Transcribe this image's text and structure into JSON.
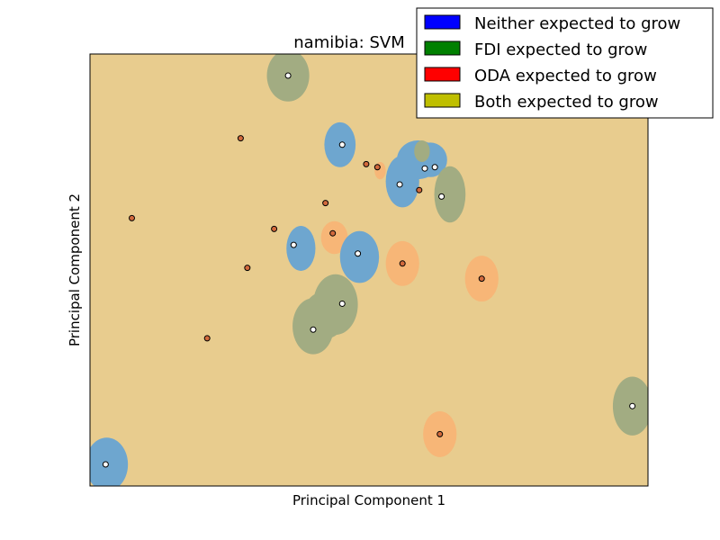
{
  "chart_data": {
    "type": "scatter",
    "title": "namibia: SVM",
    "xlabel": "Principal Component 1",
    "ylabel": "Principal Component 2",
    "xlim": [
      0,
      100
    ],
    "ylim": [
      0,
      100
    ],
    "ticks_shown": false,
    "legend": {
      "placement": "top-right",
      "entries": [
        {
          "label": "Neither expected to grow",
          "color": "#0000ff"
        },
        {
          "label": "FDI expected to grow",
          "color": "#008000"
        },
        {
          "label": "ODA expected to grow",
          "color": "#ff0000"
        },
        {
          "label": "Both expected to grow",
          "color": "#bfbf00"
        }
      ]
    },
    "region_colors": {
      "background": "#e8cc8e",
      "neither": "#6ea6cf",
      "fdi": "#a2ac82",
      "oda": "#f7b677"
    },
    "regions": [
      {
        "class": "fdi",
        "x": 35.5,
        "y": 95.0,
        "rx": 3.8,
        "ry": 6.0
      },
      {
        "class": "neither",
        "x": 44.8,
        "y": 79.0,
        "rx": 2.8,
        "ry": 5.2
      },
      {
        "class": "neither",
        "x": 56.0,
        "y": 70.5,
        "rx": 3.0,
        "ry": 6.0
      },
      {
        "class": "neither",
        "x": 58.8,
        "y": 75.5,
        "rx": 3.8,
        "ry": 4.5
      },
      {
        "class": "neither",
        "x": 61.0,
        "y": 75.5,
        "rx": 3.0,
        "ry": 4.0
      },
      {
        "class": "fdi",
        "x": 59.5,
        "y": 77.5,
        "rx": 1.4,
        "ry": 2.5
      },
      {
        "class": "fdi",
        "x": 64.5,
        "y": 67.5,
        "rx": 2.8,
        "ry": 6.5
      },
      {
        "class": "oda",
        "x": 52.0,
        "y": 73.0,
        "rx": 1.0,
        "ry": 2.0
      },
      {
        "class": "oda",
        "x": 43.8,
        "y": 57.5,
        "rx": 2.4,
        "ry": 3.8
      },
      {
        "class": "neither",
        "x": 37.8,
        "y": 55.0,
        "rx": 2.6,
        "ry": 5.2
      },
      {
        "class": "neither",
        "x": 48.3,
        "y": 53.0,
        "rx": 3.5,
        "ry": 6.0
      },
      {
        "class": "oda",
        "x": 56.0,
        "y": 51.5,
        "rx": 3.0,
        "ry": 5.2
      },
      {
        "class": "oda",
        "x": 70.2,
        "y": 48.0,
        "rx": 3.0,
        "ry": 5.3
      },
      {
        "class": "fdi",
        "x": 40.0,
        "y": 37.0,
        "rx": 3.7,
        "ry": 6.5
      },
      {
        "class": "fdi",
        "x": 44.0,
        "y": 42.0,
        "rx": 4.0,
        "ry": 7.0
      },
      {
        "class": "fdi",
        "x": 42.0,
        "y": 39.5,
        "rx": 3.8,
        "ry": 5.5
      },
      {
        "class": "fdi",
        "x": 97.2,
        "y": 18.5,
        "rx": 3.5,
        "ry": 6.8
      },
      {
        "class": "oda",
        "x": 62.7,
        "y": 12.0,
        "rx": 3.0,
        "ry": 5.3
      },
      {
        "class": "neither",
        "x": 3.0,
        "y": 5.0,
        "rx": 3.8,
        "ry": 6.2
      }
    ],
    "points": [
      {
        "x": 35.5,
        "y": 95.0,
        "color": "#ffffff"
      },
      {
        "x": 45.2,
        "y": 79.0,
        "color": "#ffffff"
      },
      {
        "x": 60.0,
        "y": 73.5,
        "color": "#ffffff"
      },
      {
        "x": 61.8,
        "y": 73.8,
        "color": "#ffffff"
      },
      {
        "x": 55.5,
        "y": 69.8,
        "color": "#ffffff"
      },
      {
        "x": 63.0,
        "y": 67.0,
        "color": "#ffffff"
      },
      {
        "x": 36.5,
        "y": 55.8,
        "color": "#ffffff"
      },
      {
        "x": 48.0,
        "y": 53.8,
        "color": "#ffffff"
      },
      {
        "x": 45.2,
        "y": 42.2,
        "color": "#ffffff"
      },
      {
        "x": 40.0,
        "y": 36.2,
        "color": "#ffffff"
      },
      {
        "x": 97.2,
        "y": 18.5,
        "color": "#ffffff"
      },
      {
        "x": 2.8,
        "y": 5.0,
        "color": "#ffffff"
      },
      {
        "x": 27.0,
        "y": 80.5,
        "color": "#d2693c"
      },
      {
        "x": 49.5,
        "y": 74.5,
        "color": "#d2693c"
      },
      {
        "x": 51.5,
        "y": 73.8,
        "color": "#d2693c"
      },
      {
        "x": 59.0,
        "y": 68.5,
        "color": "#d2693c"
      },
      {
        "x": 42.2,
        "y": 65.5,
        "color": "#d2693c"
      },
      {
        "x": 7.5,
        "y": 62.0,
        "color": "#d2693c"
      },
      {
        "x": 33.0,
        "y": 59.5,
        "color": "#d2693c"
      },
      {
        "x": 43.5,
        "y": 58.5,
        "color": "#d2693c"
      },
      {
        "x": 28.2,
        "y": 50.5,
        "color": "#d2693c"
      },
      {
        "x": 56.0,
        "y": 51.5,
        "color": "#d2693c"
      },
      {
        "x": 70.2,
        "y": 48.0,
        "color": "#d2693c"
      },
      {
        "x": 21.0,
        "y": 34.2,
        "color": "#d2693c"
      },
      {
        "x": 62.7,
        "y": 12.0,
        "color": "#d2693c"
      }
    ]
  }
}
